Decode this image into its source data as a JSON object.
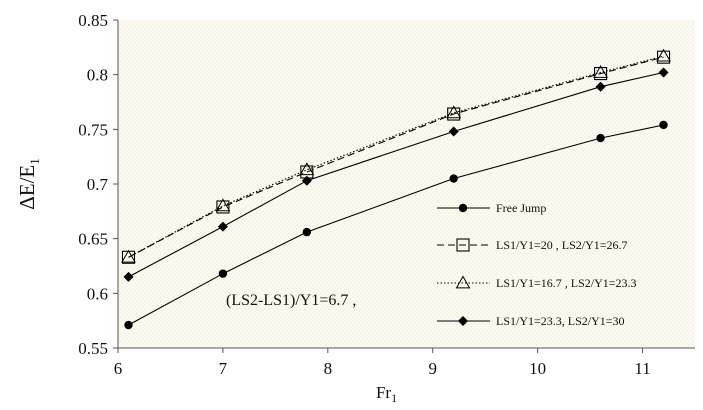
{
  "chart_data": {
    "type": "line",
    "title": "",
    "xlabel_main": "Fr",
    "xlabel_sub": "1",
    "ylabel_main": "ΔE/E",
    "ylabel_sub": "1",
    "xlim": [
      6,
      11.5
    ],
    "ylim": [
      0.55,
      0.85
    ],
    "xticks": [
      6,
      7,
      8,
      9,
      10,
      11
    ],
    "xtick_labels": [
      "6",
      "7",
      "8",
      "9",
      "10",
      "11"
    ],
    "yticks": [
      0.55,
      0.6,
      0.65,
      0.7,
      0.75,
      0.8,
      0.85
    ],
    "ytick_labels": [
      "0.55",
      "0.6",
      "0.65",
      "0.7",
      "0.75",
      "0.8",
      "0.85"
    ],
    "grid": "none",
    "legend_position": "right",
    "annotation": "(LS2-LS1)/Y1=6.7  ,",
    "series": [
      {
        "name": "Free Jump",
        "x": [
          6.1,
          7.0,
          7.8,
          9.2,
          10.6,
          11.2
        ],
        "y": [
          0.571,
          0.618,
          0.656,
          0.705,
          0.742,
          0.754
        ],
        "marker": "circle",
        "line": "solid"
      },
      {
        "name": "LS1/Y1=20 , LS2/Y1=26.7",
        "x": [
          6.1,
          7.0,
          7.8,
          9.2,
          10.6,
          11.2
        ],
        "y": [
          0.633,
          0.679,
          0.711,
          0.764,
          0.801,
          0.816
        ],
        "marker": "square-open",
        "line": "dashed"
      },
      {
        "name": "LS1/Y1=16.7 , LS2/Y1=23.3",
        "x": [
          6.1,
          7.0,
          7.8,
          9.2,
          10.6,
          11.2
        ],
        "y": [
          0.633,
          0.68,
          0.713,
          0.765,
          0.802,
          0.817
        ],
        "marker": "triangle-open",
        "line": "dotted"
      },
      {
        "name": "LS1/Y1=23.3, LS2/Y1=30",
        "x": [
          6.1,
          7.0,
          7.8,
          9.2,
          10.6,
          11.2
        ],
        "y": [
          0.615,
          0.661,
          0.703,
          0.748,
          0.789,
          0.802
        ],
        "marker": "diamond",
        "line": "solid"
      }
    ]
  }
}
